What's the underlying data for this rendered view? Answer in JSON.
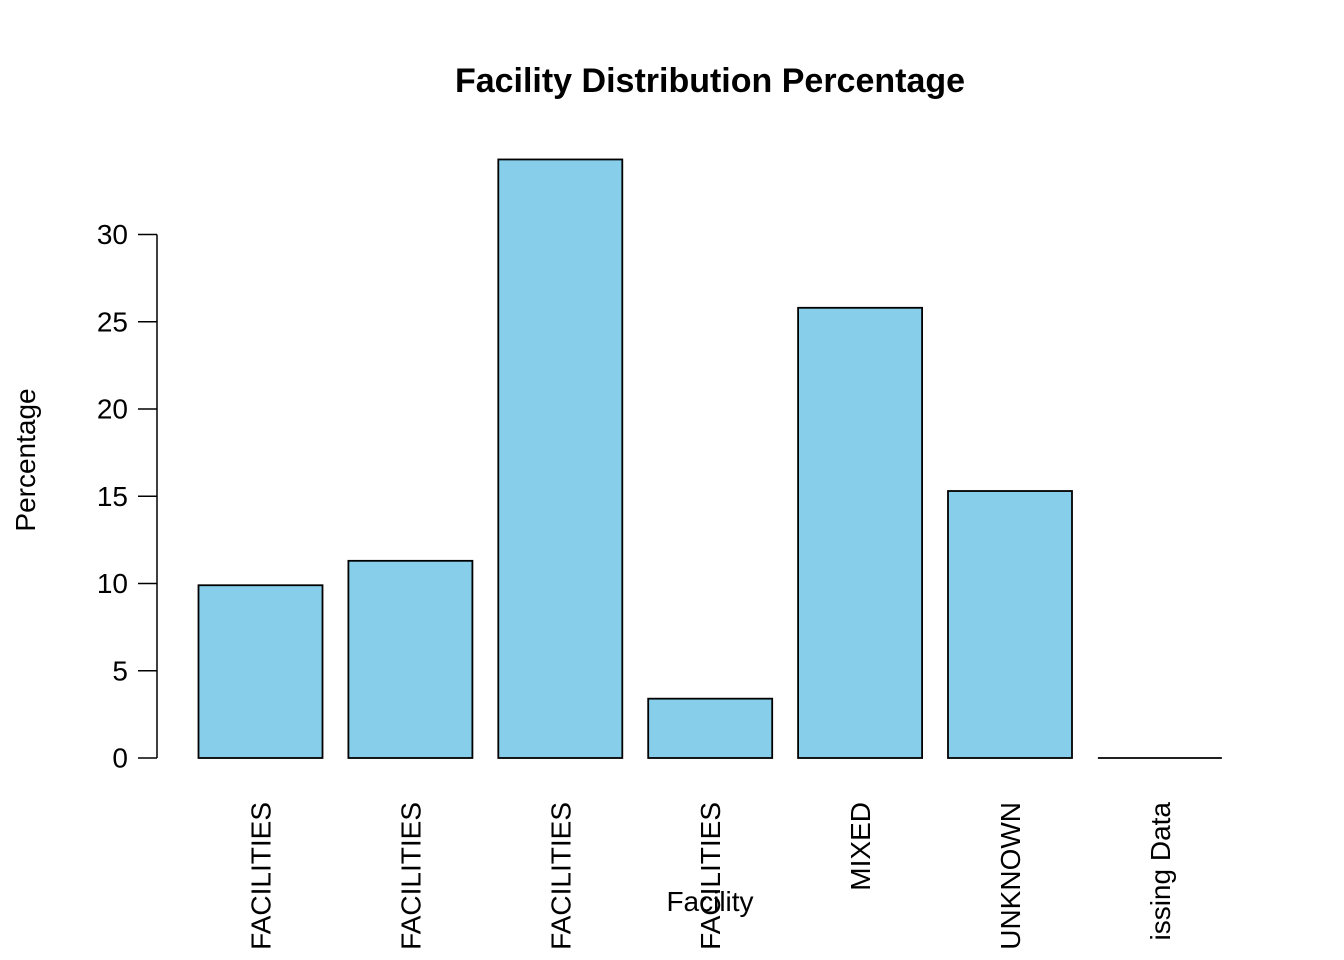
{
  "chart_data": {
    "type": "bar",
    "title": "Facility Distribution Percentage",
    "xlabel": "Facility",
    "ylabel": "Percentage",
    "categories": [
      "FACILITIES",
      "FACILITIES",
      "FACILITIES",
      "FACILITIES",
      "MIXED",
      "UNKNOWN",
      "issing Data"
    ],
    "values": [
      9.9,
      11.3,
      34.3,
      3.4,
      25.8,
      15.3,
      0.0
    ],
    "yticks": [
      0,
      5,
      10,
      15,
      20,
      25,
      30
    ],
    "ylim": [
      0,
      34.3
    ],
    "bar_color": "#87CEEB",
    "bar_border_color": "#000000",
    "grid": false,
    "legend": "none"
  }
}
